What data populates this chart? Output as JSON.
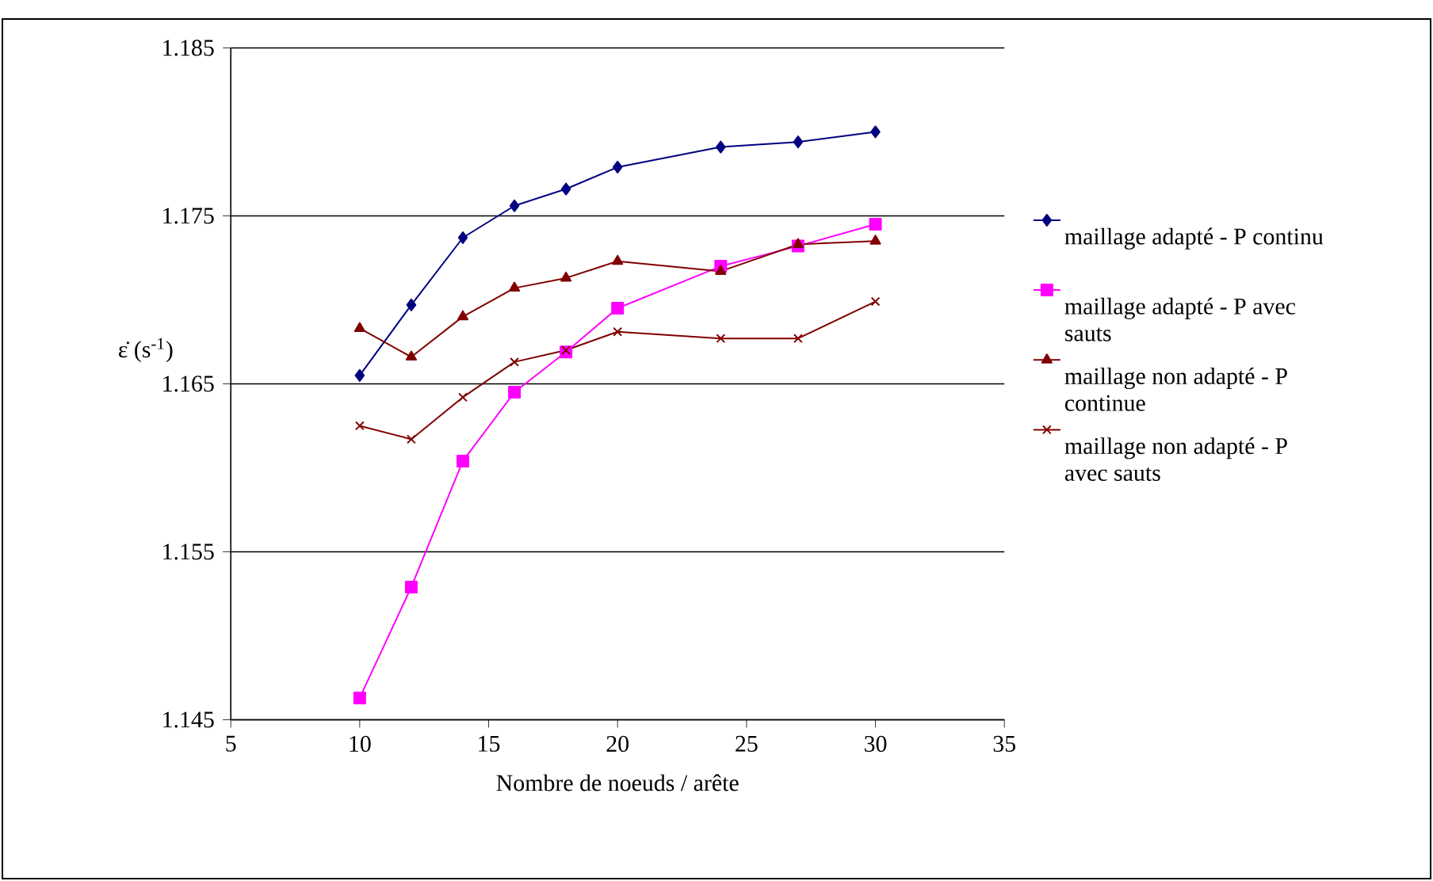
{
  "chart_data": {
    "type": "line",
    "xlabel": "Nombre de noeuds / arête",
    "ylabel": "ε̇ (s$^{-1}$)",
    "xlim": [
      5,
      35
    ],
    "xticks": [
      5,
      10,
      15,
      20,
      25,
      30,
      35
    ],
    "ylim": [
      1.145,
      1.185
    ],
    "yticks": [
      1.145,
      1.155,
      1.165,
      1.175,
      1.185
    ],
    "grid": "y",
    "legend": "right",
    "line_style": "solid",
    "series": [
      {
        "name": "maillage adapté - P continu",
        "color": "#000080",
        "marker": "diamond",
        "x": [
          10,
          12,
          14,
          16,
          18,
          20,
          24,
          27,
          30
        ],
        "values": [
          1.1655,
          1.1697,
          1.1737,
          1.1756,
          1.1766,
          1.1779,
          1.1791,
          1.1794,
          1.18
        ]
      },
      {
        "name": "maillage adapté - P avec sauts",
        "color": "#ff00ff",
        "marker": "square",
        "x": [
          10,
          12,
          14,
          16,
          18,
          20,
          24,
          27,
          30
        ],
        "values": [
          1.1463,
          1.1529,
          1.1604,
          1.1645,
          1.1669,
          1.1695,
          1.172,
          1.1732,
          1.1745
        ]
      },
      {
        "name": "maillage non adapté - P continue",
        "color": "#800000",
        "marker": "triangle",
        "x": [
          10,
          12,
          14,
          16,
          18,
          20,
          24,
          27,
          30
        ],
        "values": [
          1.1683,
          1.1666,
          1.169,
          1.1707,
          1.1713,
          1.1723,
          1.1717,
          1.1733,
          1.1735
        ]
      },
      {
        "name": "maillage non adapté - P avec sauts",
        "color": "#800000",
        "marker": "cross",
        "x": [
          10,
          12,
          14,
          16,
          18,
          20,
          24,
          27,
          30
        ],
        "values": [
          1.1625,
          1.1617,
          1.1642,
          1.1663,
          1.167,
          1.1681,
          1.1677,
          1.1677,
          1.1699
        ]
      }
    ]
  }
}
